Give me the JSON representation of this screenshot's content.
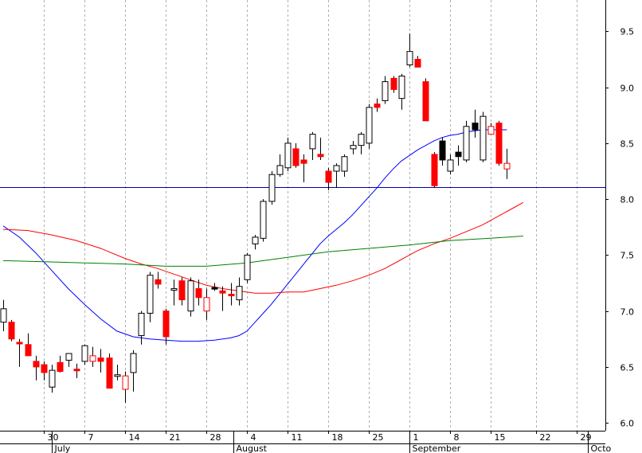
{
  "chart_data": {
    "type": "candlestick",
    "grid": true,
    "y_axis": {
      "position": "right",
      "ylim": [
        5.93,
        9.78
      ],
      "ticks": [
        6.0,
        6.5,
        7.0,
        7.5,
        8.0,
        8.5,
        9.0,
        9.5
      ],
      "tick_labels": [
        "6.0",
        "6.5",
        "7.0",
        "7.5",
        "8.0",
        "8.5",
        "9.0",
        "9.5"
      ]
    },
    "x_axis": {
      "day_ticks": [
        {
          "date": "Jun 30",
          "label": "30"
        },
        {
          "date": "Jul 7",
          "label": "7"
        },
        {
          "date": "Jul 14",
          "label": "14"
        },
        {
          "date": "Jul 21",
          "label": "21"
        },
        {
          "date": "Jul 28",
          "label": "28"
        },
        {
          "date": "Aug 4",
          "label": "4"
        },
        {
          "date": "Aug 11",
          "label": "11"
        },
        {
          "date": "Aug 18",
          "label": "18"
        },
        {
          "date": "Aug 25",
          "label": "25"
        },
        {
          "date": "Sep 1",
          "label": "1"
        },
        {
          "date": "Sep 8",
          "label": "8"
        },
        {
          "date": "Sep 15",
          "label": "15"
        },
        {
          "date": "Sep 22",
          "label": "22"
        },
        {
          "date": "Sep 29",
          "label": "29"
        }
      ],
      "months": [
        {
          "date": "Jul 1",
          "label": "July"
        },
        {
          "date": "Aug 1",
          "label": "August"
        },
        {
          "date": "Sep 1",
          "label": "September"
        },
        {
          "date": "Oct 1",
          "label": "Octo"
        }
      ]
    },
    "colors": {
      "up": "#ffffff",
      "down": "#ff0000",
      "down_hollow": "#ffffff",
      "solid_black": "#000000",
      "ma_fast": "#0000ff",
      "ma_mid": "#ff0000",
      "ma_slow": "#008000",
      "hline": "#0000a0",
      "grid": "#b0b0b0"
    },
    "horizontal_line": 8.11,
    "candles": [
      {
        "date": "Jun 25",
        "open": 6.9,
        "high": 7.1,
        "low": 6.82,
        "close": 7.02,
        "color": "up"
      },
      {
        "date": "Jun 26",
        "open": 6.9,
        "high": 6.92,
        "low": 6.73,
        "close": 6.75,
        "color": "down"
      },
      {
        "date": "Jun 27",
        "open": 6.72,
        "high": 6.75,
        "low": 6.5,
        "close": 6.72,
        "color": "down"
      },
      {
        "date": "Jun 28",
        "open": 6.7,
        "high": 6.8,
        "low": 6.6,
        "close": 6.6,
        "color": "down"
      },
      {
        "date": "Jun 29",
        "open": 6.55,
        "high": 6.6,
        "low": 6.38,
        "close": 6.5,
        "color": "down"
      },
      {
        "date": "Jun 30",
        "open": 6.52,
        "high": 6.55,
        "low": 6.38,
        "close": 6.45,
        "color": "down"
      },
      {
        "date": "Jul 1",
        "open": 6.32,
        "high": 6.52,
        "low": 6.27,
        "close": 6.47,
        "color": "up"
      },
      {
        "date": "Jul 2",
        "open": 6.54,
        "high": 6.6,
        "low": 6.45,
        "close": 6.46,
        "color": "down"
      },
      {
        "date": "Jul 3",
        "open": 6.56,
        "high": 6.62,
        "low": 6.5,
        "close": 6.62,
        "color": "up"
      },
      {
        "date": "Jul 6",
        "open": 6.48,
        "high": 6.53,
        "low": 6.4,
        "close": 6.48,
        "color": "down"
      },
      {
        "date": "Jul 7",
        "open": 6.55,
        "high": 6.7,
        "low": 6.52,
        "close": 6.69,
        "color": "up"
      },
      {
        "date": "Jul 8",
        "open": 6.6,
        "high": 6.68,
        "low": 6.5,
        "close": 6.55,
        "color": "down_hollow"
      },
      {
        "date": "Jul 9",
        "open": 6.58,
        "high": 6.66,
        "low": 6.45,
        "close": 6.55,
        "color": "down"
      },
      {
        "date": "Jul 10",
        "open": 6.58,
        "high": 6.62,
        "low": 6.31,
        "close": 6.31,
        "color": "down"
      },
      {
        "date": "Jul 13",
        "open": 6.43,
        "high": 6.52,
        "low": 6.38,
        "close": 6.42,
        "color": "up"
      },
      {
        "date": "Jul 14",
        "open": 6.42,
        "high": 6.46,
        "low": 6.18,
        "close": 6.3,
        "color": "down_hollow"
      },
      {
        "date": "Jul 15",
        "open": 6.45,
        "high": 6.65,
        "low": 6.28,
        "close": 6.62,
        "color": "up"
      },
      {
        "date": "Jul 16",
        "open": 6.78,
        "high": 7.0,
        "low": 6.7,
        "close": 6.98,
        "color": "up"
      },
      {
        "date": "Jul 17",
        "open": 6.98,
        "high": 7.35,
        "low": 6.9,
        "close": 7.32,
        "color": "up"
      },
      {
        "date": "Jul 20",
        "open": 7.28,
        "high": 7.35,
        "low": 7.2,
        "close": 7.24,
        "color": "down"
      },
      {
        "date": "Jul 21",
        "open": 7.0,
        "high": 7.02,
        "low": 6.7,
        "close": 6.77,
        "color": "down"
      },
      {
        "date": "Jul 22",
        "open": 7.2,
        "high": 7.28,
        "low": 7.05,
        "close": 7.2,
        "color": "up"
      },
      {
        "date": "Jul 23",
        "open": 7.27,
        "high": 7.3,
        "low": 7.05,
        "close": 7.1,
        "color": "down"
      },
      {
        "date": "Jul 24",
        "open": 7.0,
        "high": 7.3,
        "low": 6.95,
        "close": 7.27,
        "color": "up"
      },
      {
        "date": "Jul 27",
        "open": 7.2,
        "high": 7.28,
        "low": 7.05,
        "close": 7.12,
        "color": "down"
      },
      {
        "date": "Jul 28",
        "open": 7.12,
        "high": 7.2,
        "low": 6.92,
        "close": 7.0,
        "color": "down_hollow"
      },
      {
        "date": "Jul 29",
        "open": 7.2,
        "high": 7.25,
        "low": 7.18,
        "close": 7.21,
        "color": "solid_black"
      },
      {
        "date": "Jul 30",
        "open": 7.18,
        "high": 7.22,
        "low": 7.0,
        "close": 7.16,
        "color": "down"
      },
      {
        "date": "Jul 31",
        "open": 7.15,
        "high": 7.25,
        "low": 7.05,
        "close": 7.14,
        "color": "down"
      },
      {
        "date": "Aug 3",
        "open": 7.1,
        "high": 7.3,
        "low": 7.05,
        "close": 7.22,
        "color": "up"
      },
      {
        "date": "Aug 4",
        "open": 7.28,
        "high": 7.52,
        "low": 7.25,
        "close": 7.5,
        "color": "up"
      },
      {
        "date": "Aug 5",
        "open": 7.6,
        "high": 7.68,
        "low": 7.55,
        "close": 7.66,
        "color": "up"
      },
      {
        "date": "Aug 6",
        "open": 7.65,
        "high": 8.0,
        "low": 7.62,
        "close": 7.98,
        "color": "up"
      },
      {
        "date": "Aug 7",
        "open": 7.98,
        "high": 8.25,
        "low": 7.95,
        "close": 8.22,
        "color": "up"
      },
      {
        "date": "Aug 10",
        "open": 8.22,
        "high": 8.4,
        "low": 8.2,
        "close": 8.3,
        "color": "up"
      },
      {
        "date": "Aug 11",
        "open": 8.28,
        "high": 8.55,
        "low": 8.25,
        "close": 8.5,
        "color": "up"
      },
      {
        "date": "Aug 12",
        "open": 8.45,
        "high": 8.5,
        "low": 8.28,
        "close": 8.3,
        "color": "down"
      },
      {
        "date": "Aug 13",
        "open": 8.35,
        "high": 8.4,
        "low": 8.15,
        "close": 8.32,
        "color": "down"
      },
      {
        "date": "Aug 14",
        "open": 8.45,
        "high": 8.6,
        "low": 8.35,
        "close": 8.58,
        "color": "up"
      },
      {
        "date": "Aug 17",
        "open": 8.4,
        "high": 8.55,
        "low": 8.35,
        "close": 8.38,
        "color": "down"
      },
      {
        "date": "Aug 18",
        "open": 8.25,
        "high": 8.28,
        "low": 8.08,
        "close": 8.15,
        "color": "down"
      },
      {
        "date": "Aug 19",
        "open": 8.25,
        "high": 8.32,
        "low": 8.1,
        "close": 8.3,
        "color": "up"
      },
      {
        "date": "Aug 20",
        "open": 8.25,
        "high": 8.4,
        "low": 8.2,
        "close": 8.38,
        "color": "up"
      },
      {
        "date": "Aug 21",
        "open": 8.45,
        "high": 8.52,
        "low": 8.4,
        "close": 8.48,
        "color": "up"
      },
      {
        "date": "Aug 24",
        "open": 8.48,
        "high": 8.6,
        "low": 8.4,
        "close": 8.58,
        "color": "up"
      },
      {
        "date": "Aug 25",
        "open": 8.5,
        "high": 8.85,
        "low": 8.45,
        "close": 8.82,
        "color": "up"
      },
      {
        "date": "Aug 26",
        "open": 8.85,
        "high": 8.9,
        "low": 8.78,
        "close": 8.82,
        "color": "down"
      },
      {
        "date": "Aug 27",
        "open": 8.88,
        "high": 9.1,
        "low": 8.85,
        "close": 9.05,
        "color": "up"
      },
      {
        "date": "Aug 28",
        "open": 9.08,
        "high": 9.1,
        "low": 8.95,
        "close": 8.98,
        "color": "down"
      },
      {
        "date": "Aug 31",
        "open": 8.9,
        "high": 9.12,
        "low": 8.8,
        "close": 9.1,
        "color": "up"
      },
      {
        "date": "Sep 1",
        "open": 9.2,
        "high": 9.48,
        "low": 9.18,
        "close": 9.32,
        "color": "up"
      },
      {
        "date": "Sep 2",
        "open": 9.25,
        "high": 9.28,
        "low": 9.18,
        "close": 9.18,
        "color": "down"
      },
      {
        "date": "Sep 3",
        "open": 9.05,
        "high": 9.08,
        "low": 8.7,
        "close": 8.7,
        "color": "down"
      },
      {
        "date": "Sep 4",
        "open": 8.4,
        "high": 8.42,
        "low": 8.1,
        "close": 8.12,
        "color": "down"
      },
      {
        "date": "Sep 7",
        "open": 8.35,
        "high": 8.55,
        "low": 8.3,
        "close": 8.52,
        "color": "solid_black"
      },
      {
        "date": "Sep 8",
        "open": 8.25,
        "high": 8.4,
        "low": 8.22,
        "close": 8.35,
        "color": "up"
      },
      {
        "date": "Sep 9",
        "open": 8.42,
        "high": 8.48,
        "low": 8.3,
        "close": 8.38,
        "color": "solid_black"
      },
      {
        "date": "Sep 10",
        "open": 8.35,
        "high": 8.7,
        "low": 8.33,
        "close": 8.65,
        "color": "up"
      },
      {
        "date": "Sep 11",
        "open": 8.62,
        "high": 8.8,
        "low": 8.55,
        "close": 8.68,
        "color": "solid_black"
      },
      {
        "date": "Sep 14",
        "open": 8.35,
        "high": 8.78,
        "low": 8.33,
        "close": 8.74,
        "color": "up"
      },
      {
        "date": "Sep 15",
        "open": 8.65,
        "high": 8.68,
        "low": 8.58,
        "close": 8.58,
        "color": "down_hollow"
      },
      {
        "date": "Sep 16",
        "open": 8.68,
        "high": 8.7,
        "low": 8.3,
        "close": 8.32,
        "color": "down"
      },
      {
        "date": "Sep 17",
        "open": 8.32,
        "high": 8.45,
        "low": 8.18,
        "close": 8.27,
        "color": "down_hollow"
      }
    ],
    "moving_averages": [
      {
        "color": "ma_fast",
        "values": [
          [
            0,
            7.76
          ],
          [
            2,
            7.66
          ],
          [
            4,
            7.52
          ],
          [
            6,
            7.36
          ],
          [
            8,
            7.2
          ],
          [
            10,
            7.06
          ],
          [
            12,
            6.93
          ],
          [
            14,
            6.82
          ],
          [
            16,
            6.77
          ],
          [
            18,
            6.75
          ],
          [
            20,
            6.74
          ],
          [
            22,
            6.73
          ],
          [
            24,
            6.73
          ],
          [
            26,
            6.74
          ],
          [
            28,
            6.76
          ],
          [
            29,
            6.78
          ],
          [
            30,
            6.82
          ],
          [
            31,
            6.9
          ],
          [
            32,
            6.98
          ],
          [
            33,
            7.06
          ],
          [
            34,
            7.15
          ],
          [
            35,
            7.24
          ],
          [
            36,
            7.33
          ],
          [
            37,
            7.42
          ],
          [
            38,
            7.51
          ],
          [
            39,
            7.6
          ],
          [
            40,
            7.67
          ],
          [
            41,
            7.73
          ],
          [
            42,
            7.79
          ],
          [
            43,
            7.86
          ],
          [
            44,
            7.94
          ],
          [
            45,
            8.02
          ],
          [
            46,
            8.1
          ],
          [
            47,
            8.19
          ],
          [
            48,
            8.27
          ],
          [
            49,
            8.34
          ],
          [
            50,
            8.39
          ],
          [
            51,
            8.44
          ],
          [
            52,
            8.48
          ],
          [
            53,
            8.52
          ],
          [
            54,
            8.55
          ],
          [
            55,
            8.57
          ],
          [
            56,
            8.58
          ],
          [
            57,
            8.6
          ],
          [
            58,
            8.61
          ],
          [
            59,
            8.62
          ],
          [
            60,
            8.62
          ],
          [
            61,
            8.62
          ],
          [
            62,
            8.62
          ]
        ]
      },
      {
        "color": "ma_mid",
        "values": [
          [
            0,
            7.73
          ],
          [
            3,
            7.72
          ],
          [
            6,
            7.68
          ],
          [
            9,
            7.63
          ],
          [
            12,
            7.56
          ],
          [
            15,
            7.47
          ],
          [
            17,
            7.42
          ],
          [
            19,
            7.38
          ],
          [
            21,
            7.33
          ],
          [
            23,
            7.28
          ],
          [
            25,
            7.23
          ],
          [
            27,
            7.2
          ],
          [
            29,
            7.18
          ],
          [
            31,
            7.16
          ],
          [
            33,
            7.16
          ],
          [
            35,
            7.17
          ],
          [
            37,
            7.17
          ],
          [
            39,
            7.2
          ],
          [
            41,
            7.23
          ],
          [
            43,
            7.27
          ],
          [
            45,
            7.32
          ],
          [
            47,
            7.38
          ],
          [
            49,
            7.46
          ],
          [
            51,
            7.54
          ],
          [
            53,
            7.6
          ],
          [
            55,
            7.65
          ],
          [
            57,
            7.71
          ],
          [
            59,
            7.77
          ],
          [
            61,
            7.85
          ],
          [
            63,
            7.93
          ],
          [
            64,
            7.97
          ]
        ]
      },
      {
        "color": "ma_slow",
        "values": [
          [
            0,
            7.45
          ],
          [
            5,
            7.44
          ],
          [
            10,
            7.43
          ],
          [
            15,
            7.42
          ],
          [
            20,
            7.4
          ],
          [
            25,
            7.4
          ],
          [
            30,
            7.43
          ],
          [
            35,
            7.48
          ],
          [
            40,
            7.53
          ],
          [
            45,
            7.56
          ],
          [
            50,
            7.59
          ],
          [
            55,
            7.63
          ],
          [
            60,
            7.65
          ],
          [
            64,
            7.67
          ]
        ]
      }
    ]
  }
}
